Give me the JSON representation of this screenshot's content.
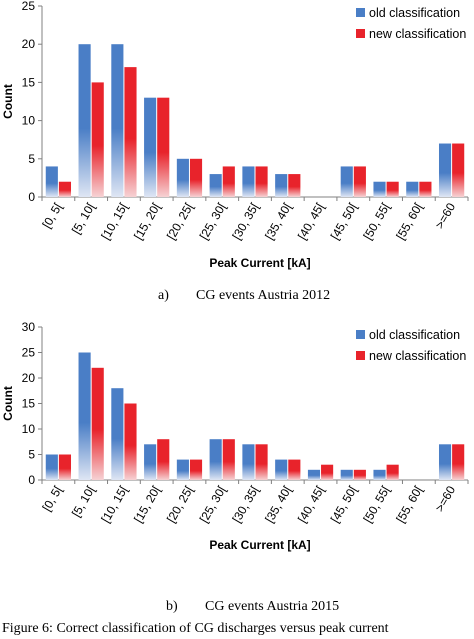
{
  "chart_data": [
    {
      "type": "bar",
      "categories": [
        "[0, 5[",
        "[5, 10[",
        "[10, 15[",
        "[15, 20[",
        "[20, 25[",
        "[25, 30[",
        "[30, 35[",
        "[35, 40[",
        "[40, 45[",
        "[45, 50[",
        "[50, 55[",
        "[55, 60[",
        ">=60"
      ],
      "series": [
        {
          "name": "old classification",
          "color": "#4a7ec6",
          "values": [
            4,
            20,
            20,
            13,
            5,
            3,
            4,
            3,
            0,
            4,
            2,
            2,
            7
          ]
        },
        {
          "name": "new classification",
          "color": "#e8232b",
          "values": [
            2,
            15,
            17,
            13,
            5,
            4,
            4,
            3,
            0,
            4,
            2,
            2,
            7
          ]
        }
      ],
      "xlabel": "Peak Current [kA]",
      "ylabel": "Count",
      "ylim": [
        0,
        25
      ],
      "yticks": [
        0,
        5,
        10,
        15,
        20,
        25
      ],
      "grid": false,
      "legend": "top-right",
      "caption_letter": "a)",
      "caption_text": "CG events Austria 2012"
    },
    {
      "type": "bar",
      "categories": [
        "[0, 5[",
        "[5, 10[",
        "[10, 15[",
        "[15, 20[",
        "[20, 25[",
        "[25, 30[",
        "[30, 35[",
        "[35, 40[",
        "[40, 45[",
        "[45, 50[",
        "[50, 55[",
        "[55, 60[",
        ">=60"
      ],
      "series": [
        {
          "name": "old classification",
          "color": "#4a7ec6",
          "values": [
            5,
            25,
            18,
            7,
            4,
            8,
            7,
            4,
            2,
            2,
            2,
            0,
            7
          ]
        },
        {
          "name": "new classification",
          "color": "#e8232b",
          "values": [
            5,
            22,
            15,
            8,
            4,
            8,
            7,
            4,
            3,
            2,
            3,
            0,
            7
          ]
        }
      ],
      "xlabel": "Peak Current [kA]",
      "ylabel": "Count",
      "ylim": [
        0,
        30
      ],
      "yticks": [
        0,
        5,
        10,
        15,
        20,
        25,
        30
      ],
      "grid": false,
      "legend": "top-right",
      "caption_letter": "b)",
      "caption_text": "CG events Austria 2015"
    }
  ],
  "figure_caption": "Figure 6: Correct classification of CG discharges versus peak current"
}
